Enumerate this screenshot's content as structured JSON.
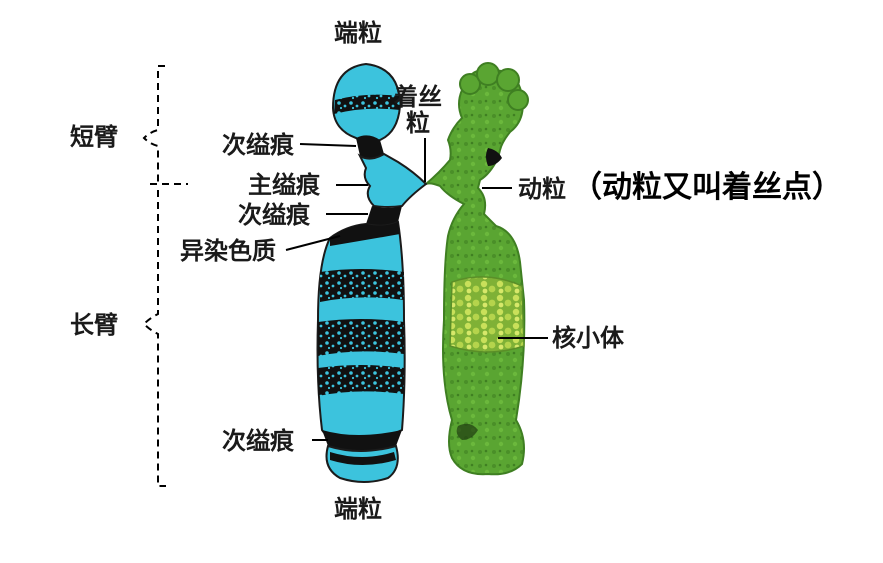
{
  "labels": {
    "telomere_top": "端粒",
    "telomere_bottom": "端粒",
    "short_arm": "短臂",
    "long_arm": "长臂",
    "secondary_constriction_1": "次缢痕",
    "primary_constriction": "主缢痕",
    "secondary_constriction_2": "次缢痕",
    "heterochromatin": "异染色质",
    "secondary_constriction_3": "次缢痕",
    "kinetochore_line1": "着丝",
    "kinetochore_line2": "粒",
    "centromere": "动粒",
    "centromere_note": "（动粒又叫着丝点）",
    "nucleolus": "核小体"
  },
  "colors": {
    "left_chromatid": "#3cc3dd",
    "left_outline": "#1b1b1b",
    "band_dark": "#111111",
    "right_chromatid": "#5aa532",
    "right_dark": "#3f7f22",
    "nucleolus_fill": "#9ec93a",
    "nucleolus_dot": "#c9e05a",
    "line": "#000000"
  }
}
